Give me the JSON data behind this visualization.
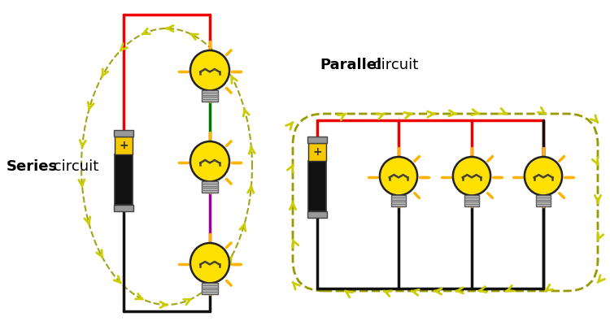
{
  "bg_color": "#ffffff",
  "series_label_bold": "Series",
  "series_label_rest": " circuit",
  "parallel_label_bold": "Parallel",
  "parallel_label_rest": " circuit",
  "bulb_yellow": "#FFE000",
  "bulb_edge": "#222222",
  "battery_gold": "#F5C800",
  "battery_black": "#111111",
  "battery_gray": "#999999",
  "wire_red": "#EE0000",
  "wire_black": "#111111",
  "wire_green": "#007700",
  "wire_purple": "#990099",
  "arrow_yellow": "#CCCC00",
  "arrow_dark": "#999900",
  "ray_color": "#FFB300"
}
